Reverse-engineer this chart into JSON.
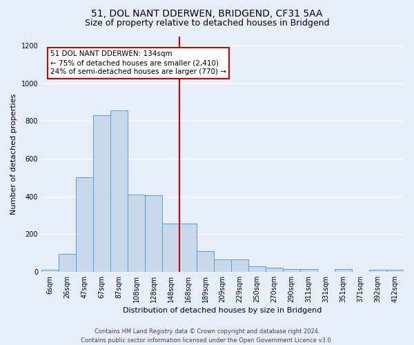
{
  "title": "51, DOL NANT DDERWEN, BRIDGEND, CF31 5AA",
  "subtitle": "Size of property relative to detached houses in Bridgend",
  "xlabel": "Distribution of detached houses by size in Bridgend",
  "ylabel": "Number of detached properties",
  "bar_labels": [
    "6sqm",
    "26sqm",
    "47sqm",
    "67sqm",
    "87sqm",
    "108sqm",
    "128sqm",
    "148sqm",
    "168sqm",
    "189sqm",
    "209sqm",
    "229sqm",
    "250sqm",
    "270sqm",
    "290sqm",
    "311sqm",
    "331sqm",
    "351sqm",
    "371sqm",
    "392sqm",
    "412sqm"
  ],
  "bar_values": [
    10,
    95,
    500,
    830,
    855,
    410,
    405,
    255,
    255,
    110,
    65,
    65,
    30,
    20,
    15,
    15,
    0,
    15,
    0,
    10,
    10
  ],
  "bar_color": "#c9d9ec",
  "bar_edgecolor": "#5b9bd5",
  "vline_position": 7.5,
  "vline_color": "#cc0000",
  "annotation_text": "51 DOL NANT DDERWEN: 134sqm\n← 75% of detached houses are smaller (2,410)\n24% of semi-detached houses are larger (770) →",
  "annotation_box_edgecolor": "#cc0000",
  "annotation_box_facecolor": "#ffffff",
  "ylim": [
    0,
    1250
  ],
  "yticks": [
    0,
    200,
    400,
    600,
    800,
    1000,
    1200
  ],
  "footer": "Contains HM Land Registry data © Crown copyright and database right 2024.\nContains public sector information licensed under the Open Government Licence v3.0.",
  "background_color": "#e8eef7",
  "grid_color": "#ffffff",
  "title_fontsize": 10,
  "subtitle_fontsize": 9,
  "ylabel_fontsize": 8,
  "xlabel_fontsize": 8,
  "tick_fontsize": 7,
  "annotation_fontsize": 7.5,
  "footer_fontsize": 6
}
